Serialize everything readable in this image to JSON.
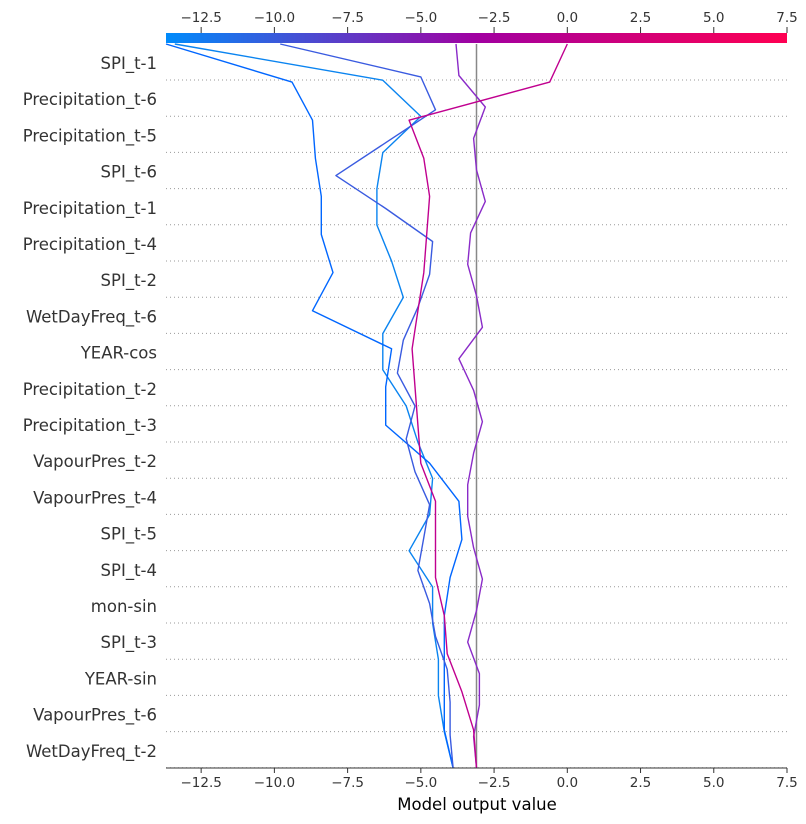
{
  "chart_data": {
    "type": "line",
    "subtype": "shap-decision-plot",
    "xlabel": "Model output value",
    "xlim": [
      -13.7,
      7.5
    ],
    "xticks": [
      -12.5,
      -10.0,
      -7.5,
      -5.0,
      -2.5,
      0.0,
      2.5,
      5.0,
      7.5
    ],
    "xtick_labels": [
      "−12.5",
      "−10.0",
      "−7.5",
      "−5.0",
      "−2.5",
      "0.0",
      "2.5",
      "5.0",
      "7.5"
    ],
    "base_value": -3.1,
    "grid": "dotted horizontal lines between features",
    "colorbar": {
      "position": "top",
      "from": "#008bfb",
      "mid": "#a100a1",
      "to": "#ff0052"
    },
    "features": [
      "SPI_t-1",
      "Precipitation_t-6",
      "Precipitation_t-5",
      "SPI_t-6",
      "Precipitation_t-1",
      "Precipitation_t-4",
      "SPI_t-2",
      "WetDayFreq_t-6",
      "YEAR-cos",
      "Precipitation_t-2",
      "Precipitation_t-3",
      "VapourPres_t-2",
      "VapourPres_t-4",
      "SPI_t-5",
      "SPI_t-4",
      "mon-sin",
      "SPI_t-3",
      "YEAR-sin",
      "VapourPres_t-6",
      "WetDayFreq_t-2"
    ],
    "series": [
      {
        "color": "#0a84f0",
        "values": [
          -3.9,
          -4.2,
          -4.4,
          -4.4,
          -4.6,
          -4.6,
          -5.4,
          -4.7,
          -4.6,
          -5.1,
          -5.5,
          -6.3,
          -6.3,
          -5.6,
          -6.0,
          -6.5,
          -6.5,
          -6.3,
          -5.0,
          -6.3,
          -13.4
        ]
      },
      {
        "color": "#0066ff",
        "values": [
          -3.9,
          -4.2,
          -4.2,
          -4.2,
          -4.2,
          -4.0,
          -3.6,
          -3.7,
          -4.7,
          -6.2,
          -6.2,
          -6.0,
          -8.7,
          -8.0,
          -8.4,
          -8.4,
          -8.6,
          -8.7,
          -9.4,
          -13.7
        ]
      },
      {
        "color": "#3a5be0",
        "values": [
          -3.9,
          -4.0,
          -4.0,
          -4.1,
          -4.5,
          -4.7,
          -5.1,
          -4.9,
          -4.7,
          -5.2,
          -5.5,
          -5.2,
          -5.8,
          -5.6,
          -5.1,
          -4.7,
          -4.6,
          -6.2,
          -7.9,
          -6.2,
          -4.5,
          -5.0,
          -9.8
        ]
      },
      {
        "color": "#8a2bc8",
        "values": [
          -3.1,
          -3.2,
          -3.0,
          -3.0,
          -3.4,
          -3.1,
          -2.9,
          -3.2,
          -3.4,
          -3.4,
          -3.2,
          -2.9,
          -3.2,
          -3.7,
          -2.9,
          -3.1,
          -3.4,
          -3.3,
          -2.8,
          -3.1,
          -3.2,
          -2.8,
          -3.7,
          -3.8
        ]
      },
      {
        "color": "#c0008f",
        "values": [
          -3.1,
          -3.2,
          -3.6,
          -4.1,
          -4.2,
          -4.5,
          -4.5,
          -4.5,
          -5.0,
          -5.1,
          -5.2,
          -5.3,
          -5.1,
          -4.9,
          -4.8,
          -4.7,
          -4.9,
          -5.4,
          -0.6,
          0.0
        ]
      }
    ]
  }
}
